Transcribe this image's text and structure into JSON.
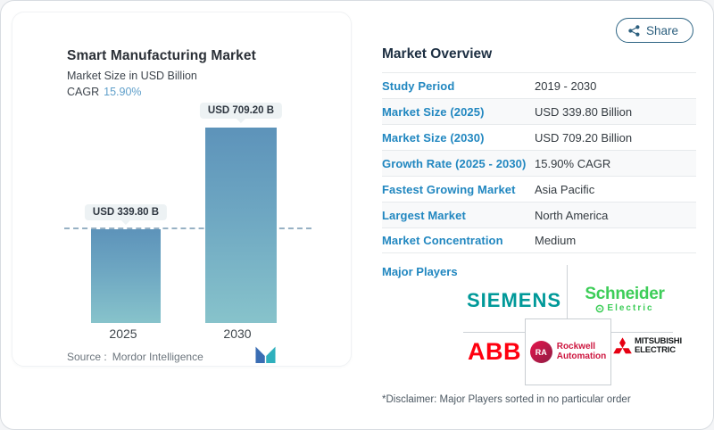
{
  "share_button": {
    "label": "Share"
  },
  "chart_card": {
    "title": "Smart Manufacturing Market",
    "subtitle": "Market Size in USD Billion",
    "cagr_label": "CAGR",
    "cagr_value": "15.90%",
    "source_label": "Source :",
    "source_name": "Mordor Intelligence"
  },
  "chart_data": {
    "type": "bar",
    "title": "Smart Manufacturing Market",
    "subtitle": "Market Size in USD Billion",
    "unit": "USD Billion",
    "categories": [
      "2025",
      "2030"
    ],
    "values": [
      339.8,
      709.2
    ],
    "bar_labels": [
      "USD 339.80 B",
      "USD 709.20 B"
    ],
    "cagr": "15.90%",
    "ylim": [
      0,
      709.2
    ],
    "grid": "off",
    "legend": "none",
    "reference_line": {
      "value": 339.8,
      "style": "dashed"
    },
    "source": "Mordor Intelligence",
    "bar_color_top": "#5d93ba",
    "bar_color_bottom": "#87c3cb"
  },
  "overview": {
    "title": "Market Overview",
    "rows": [
      {
        "label": "Study Period",
        "value": "2019 - 2030"
      },
      {
        "label": "Market Size (2025)",
        "value": "USD 339.80 Billion"
      },
      {
        "label": "Market Size (2030)",
        "value": "USD 709.20 Billion"
      },
      {
        "label": "Growth Rate (2025 - 2030)",
        "value": "15.90% CAGR"
      },
      {
        "label": "Fastest Growing Market",
        "value": "Asia Pacific"
      },
      {
        "label": "Largest Market",
        "value": "North America"
      },
      {
        "label": "Market Concentration",
        "value": "Medium"
      }
    ],
    "major_players_label": "Major Players",
    "players": [
      {
        "name": "Siemens",
        "display": "SIEMENS",
        "color": "#009999"
      },
      {
        "name": "Schneider Electric",
        "display": "Schneider",
        "display2": "Electric",
        "color": "#3dcd58"
      },
      {
        "name": "ABB",
        "display": "ABB",
        "color": "#ff000f"
      },
      {
        "name": "Rockwell Automation",
        "display": "Rockwell",
        "display2": "Automation",
        "badge": "RA",
        "color": "#cd163f"
      },
      {
        "name": "Mitsubishi Electric",
        "display": "MITSUBISHI",
        "display2": "ELECTRIC",
        "color": "#e60012"
      }
    ],
    "disclaimer": "*Disclaimer: Major Players sorted in no particular order"
  }
}
